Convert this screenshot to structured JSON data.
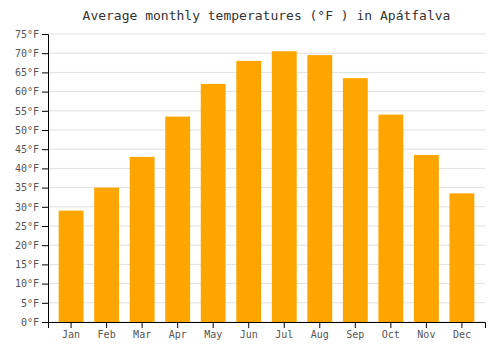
{
  "chart_data": {
    "type": "bar",
    "title": "Average monthly temperatures (°F ) in Apátfalva",
    "categories": [
      "Jan",
      "Feb",
      "Mar",
      "Apr",
      "May",
      "Jun",
      "Jul",
      "Aug",
      "Sep",
      "Oct",
      "Nov",
      "Dec"
    ],
    "values": [
      29,
      35,
      43,
      53.5,
      62,
      68,
      70.5,
      69.5,
      63.5,
      54,
      43.5,
      33.5
    ],
    "color": "#FFA500",
    "ylim": [
      0,
      75
    ],
    "yticks": [
      {
        "value": 0,
        "label": "0°F"
      },
      {
        "value": 5,
        "label": "5°F"
      },
      {
        "value": 10,
        "label": "10°F"
      },
      {
        "value": 15,
        "label": "15°F"
      },
      {
        "value": 20,
        "label": "20°F"
      },
      {
        "value": 25,
        "label": "25°F"
      },
      {
        "value": 30,
        "label": "30°F"
      },
      {
        "value": 35,
        "label": "35°F"
      },
      {
        "value": 40,
        "label": "40°F"
      },
      {
        "value": 45,
        "label": "45°F"
      },
      {
        "value": 50,
        "label": "50°F"
      },
      {
        "value": 55,
        "label": "55°F"
      },
      {
        "value": 60,
        "label": "60°F"
      },
      {
        "value": 65,
        "label": "65°F"
      },
      {
        "value": 70,
        "label": "70°F"
      },
      {
        "value": 75,
        "label": "75°F"
      }
    ],
    "grid": true
  }
}
